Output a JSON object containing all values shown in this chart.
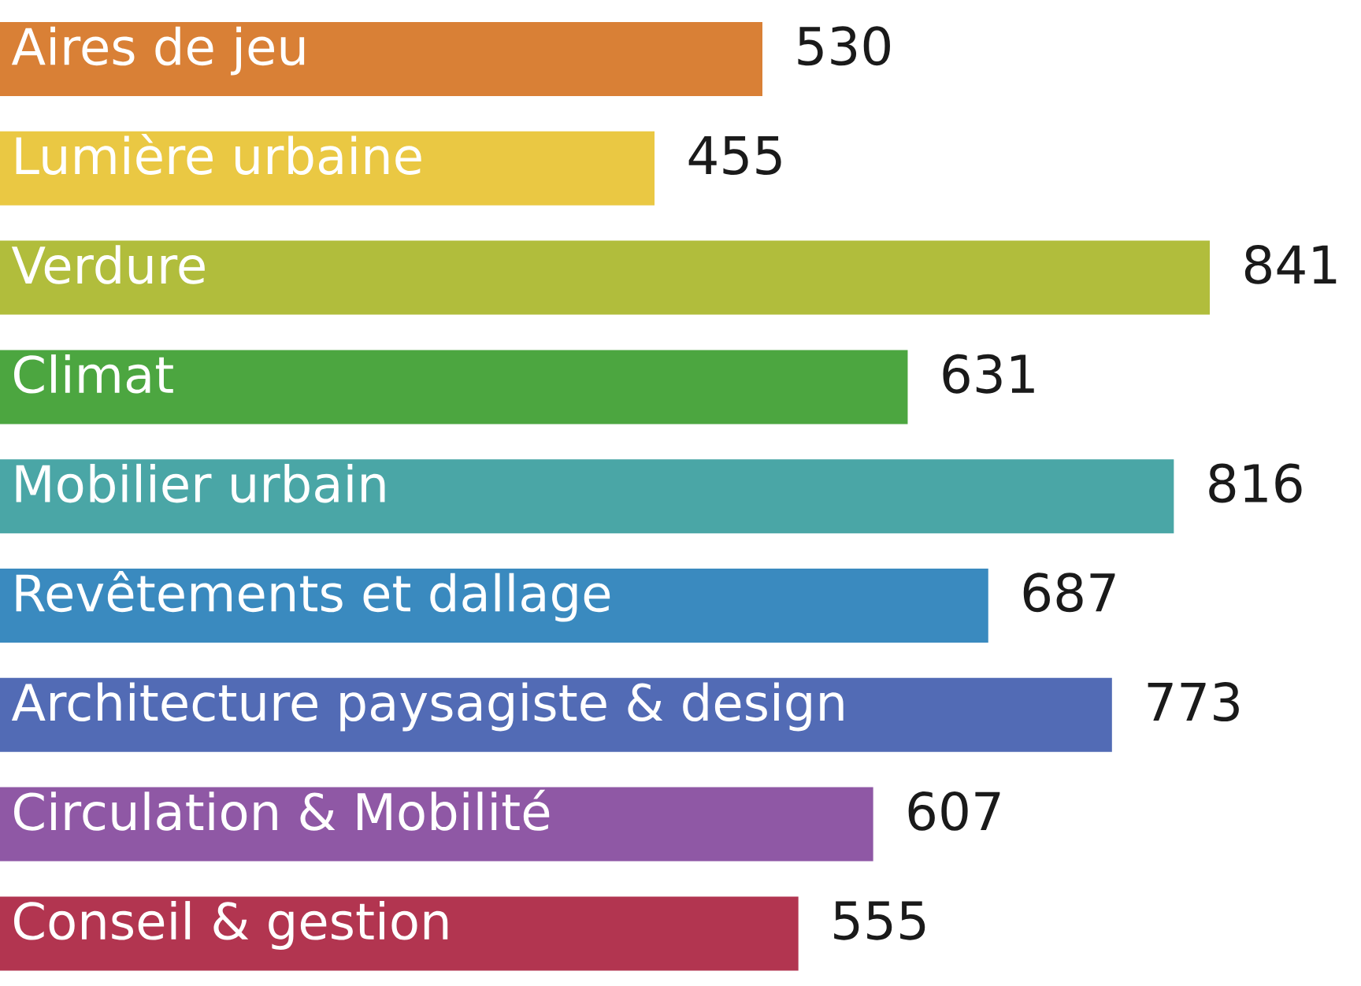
{
  "chart_data": {
    "type": "bar",
    "orientation": "horizontal",
    "data_labels": true,
    "categories": [
      "Aires de jeu",
      "Lumière urbaine",
      "Verdure",
      "Climat",
      "Mobilier urbain",
      "Revêtements et dallage",
      "Architecture paysagiste & design",
      "Circulation & Mobilité",
      "Conseil & gestion"
    ],
    "values": [
      530,
      455,
      841,
      631,
      816,
      687,
      773,
      607,
      555
    ],
    "colors": [
      "#d98036",
      "#eac843",
      "#b1bd3c",
      "#4ca640",
      "#4aa6a6",
      "#3a8abf",
      "#526bb5",
      "#8f58a5",
      "#b23550"
    ]
  }
}
